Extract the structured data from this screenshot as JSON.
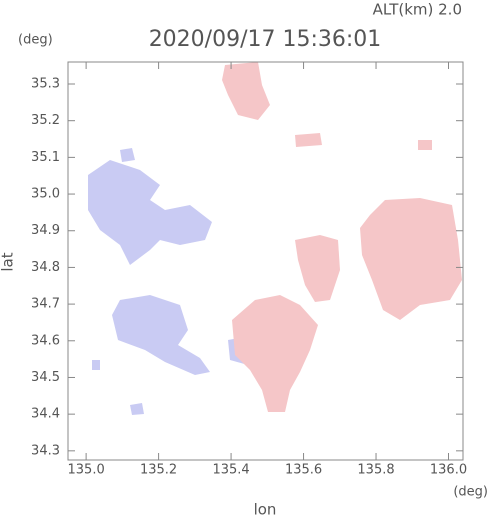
{
  "chart_data": {
    "type": "map",
    "title": "2020/09/17 15:36:01",
    "annotation": "ALT(km) 2.0",
    "x_label": "lon",
    "y_label": "lat",
    "x_unit": "(deg)",
    "y_unit": "(deg)",
    "xlim": [
      134.95,
      136.04
    ],
    "ylim": [
      34.275,
      35.36
    ],
    "xticks": [
      {
        "value": 135,
        "label": "135.0"
      },
      135.2,
      135.4,
      135.6,
      135.8,
      {
        "value": 136,
        "label": "136.0"
      }
    ],
    "yticks": [
      34.3,
      34.4,
      34.5,
      34.6,
      34.7,
      34.8,
      34.9,
      {
        "value": 35,
        "label": "35.0"
      },
      35.1,
      35.2,
      35.3
    ]
  }
}
